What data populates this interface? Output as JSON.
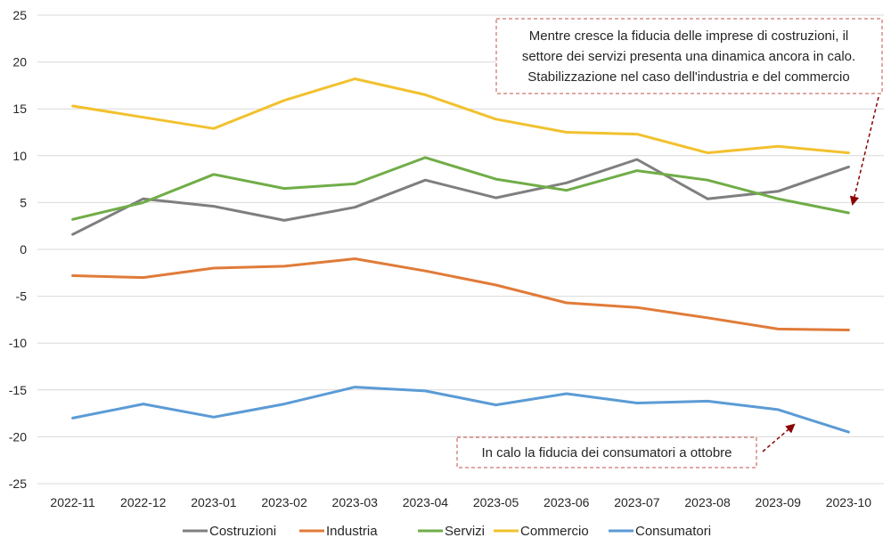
{
  "chart_data": {
    "type": "line",
    "categories": [
      "2022-11",
      "2022-12",
      "2023-01",
      "2023-02",
      "2023-03",
      "2023-04",
      "2023-05",
      "2023-06",
      "2023-07",
      "2023-08",
      "2023-09",
      "2023-10"
    ],
    "ylim": [
      -25,
      25
    ],
    "yticks": [
      25,
      20,
      15,
      10,
      5,
      0,
      -5,
      -10,
      -15,
      -20,
      -25
    ],
    "grid": true,
    "legend_position": "bottom",
    "series": [
      {
        "name": "Costruzioni",
        "color": "#7f7f7f",
        "values": [
          1.6,
          5.4,
          4.6,
          3.1,
          4.5,
          7.4,
          5.5,
          7.1,
          9.6,
          5.4,
          6.2,
          8.8
        ]
      },
      {
        "name": "Industria",
        "color": "#e07b39",
        "values": [
          -2.8,
          -3.0,
          -2.0,
          -1.8,
          -1.0,
          -2.3,
          -3.8,
          -5.7,
          -6.2,
          -7.3,
          -8.5,
          -8.6
        ]
      },
      {
        "name": "Servizi",
        "color": "#70ad47",
        "values": [
          3.2,
          5.0,
          8.0,
          6.5,
          7.0,
          9.8,
          7.5,
          6.3,
          8.4,
          7.4,
          5.4,
          3.9
        ]
      },
      {
        "name": "Commercio",
        "color": "#f2c12e",
        "values": [
          15.3,
          14.1,
          12.9,
          15.9,
          18.2,
          16.5,
          13.9,
          12.5,
          12.3,
          10.3,
          11.0,
          10.3
        ]
      },
      {
        "name": "Consumatori",
        "color": "#5b9bd5",
        "values": [
          -18.0,
          -16.5,
          -17.9,
          -16.5,
          -14.7,
          -15.1,
          -16.6,
          -15.4,
          -16.4,
          -16.2,
          -17.1,
          -19.5
        ]
      }
    ],
    "annotations": [
      {
        "lines": [
          "Mentre cresce la fiducia delle imprese di costruzioni, il",
          "settore dei servizi presenta una dinamica ancora in calo.",
          "Stabilizzazione nel caso dell'industria e del commercio"
        ],
        "border_color": "#c0504d",
        "arrow_color": "#8b0000"
      },
      {
        "lines": [
          "In calo la fiducia dei consumatori a ottobre"
        ],
        "border_color": "#c0504d",
        "arrow_color": "#8b0000"
      }
    ]
  }
}
